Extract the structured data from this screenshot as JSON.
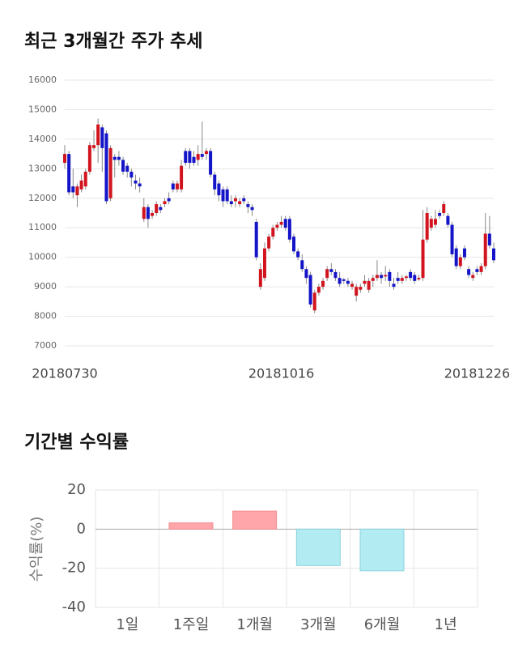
{
  "chart_data": [
    {
      "type": "candlestick",
      "title": "최근 3개월간 주가 추세",
      "categories": [
        "20180730",
        null,
        null,
        null,
        null,
        null,
        null,
        null,
        null,
        null,
        null,
        null,
        null,
        null,
        null,
        null,
        null,
        null,
        null,
        null,
        null,
        null,
        null,
        null,
        null,
        null,
        null,
        null,
        null,
        null,
        null,
        null,
        null,
        null,
        null,
        null,
        null,
        null,
        null,
        null,
        null,
        null,
        null,
        null,
        null,
        null,
        null,
        null,
        null,
        null,
        null,
        null,
        "20181016",
        null,
        null,
        null,
        null,
        null,
        null,
        null,
        null,
        null,
        null,
        null,
        null,
        null,
        null,
        null,
        null,
        null,
        null,
        null,
        null,
        null,
        null,
        null,
        null,
        null,
        null,
        null,
        null,
        null,
        null,
        null,
        null,
        null,
        null,
        null,
        null,
        null,
        null,
        null,
        null,
        null,
        null,
        null,
        null,
        null,
        null,
        "20181226",
        null,
        null,
        null,
        null
      ],
      "open": [
        13200,
        13500,
        12400,
        12100,
        12300,
        12400,
        12900,
        13700,
        13800,
        14400,
        14200,
        12000,
        13400,
        13400,
        13300,
        13100,
        12900,
        12600,
        12500,
        11300,
        11700,
        11400,
        11500,
        11700,
        11800,
        12000,
        12500,
        12300,
        12300,
        13600,
        13600,
        13400,
        13300,
        13500,
        13500,
        13600,
        12800,
        12500,
        12300,
        12300,
        11900,
        11900,
        11800,
        12000,
        11800,
        11700,
        11200,
        9000,
        9300,
        10300,
        10700,
        11000,
        11100,
        11300,
        11300,
        10700,
        10200,
        9900,
        9600,
        9400,
        8200,
        8800,
        9000,
        9300,
        9600,
        9500,
        9300,
        9250,
        9200,
        9000,
        8700,
        8900,
        9100,
        8900,
        9200,
        9300,
        9400,
        9350,
        9500,
        9100,
        9300,
        9200,
        9300,
        9500,
        9400,
        9250,
        9300,
        10600,
        11000,
        11100,
        11500,
        11500,
        11400,
        11100,
        10300,
        9700,
        10300,
        9600,
        9300,
        9600,
        9500,
        9700,
        10800,
        10300
      ],
      "high": [
        13800,
        13600,
        13000,
        12500,
        12800,
        13000,
        13900,
        14300,
        14700,
        14500,
        14300,
        13800,
        13500,
        13600,
        13400,
        13200,
        13000,
        12800,
        12700,
        12000,
        11800,
        11600,
        11900,
        11800,
        12000,
        12200,
        12600,
        12600,
        13300,
        13700,
        13700,
        13600,
        13800,
        14600,
        13700,
        13700,
        12900,
        12600,
        12400,
        12400,
        12100,
        12100,
        12000,
        12100,
        11900,
        11800,
        11300,
        9800,
        10500,
        10800,
        11100,
        11200,
        11400,
        11400,
        11400,
        10800,
        10300,
        10100,
        9700,
        9500,
        8900,
        9100,
        9300,
        9700,
        9800,
        9600,
        9500,
        9300,
        9300,
        9200,
        9100,
        9100,
        9400,
        9300,
        9400,
        9900,
        9500,
        9700,
        9600,
        9300,
        9500,
        9400,
        9400,
        9600,
        9500,
        9400,
        11600,
        11700,
        11400,
        11600,
        11600,
        11900,
        11500,
        11200,
        10400,
        10100,
        10400,
        9700,
        9500,
        9700,
        9800,
        11500,
        11400,
        10500
      ],
      "low": [
        13000,
        12100,
        12000,
        11700,
        12200,
        12300,
        12800,
        13600,
        13200,
        12900,
        11800,
        11900,
        12700,
        13100,
        12800,
        12700,
        12400,
        12300,
        12200,
        11200,
        11000,
        11300,
        11400,
        11500,
        11700,
        11800,
        12200,
        12200,
        12200,
        13100,
        13000,
        13100,
        13100,
        13300,
        13300,
        12700,
        12100,
        11900,
        11700,
        11800,
        11700,
        11700,
        11700,
        11800,
        11500,
        11400,
        9900,
        8900,
        9200,
        10200,
        10600,
        10900,
        11000,
        10900,
        10500,
        10100,
        9900,
        9500,
        9100,
        8300,
        8100,
        8700,
        8900,
        9200,
        9400,
        9200,
        9000,
        9100,
        9000,
        8900,
        8500,
        8800,
        9000,
        8800,
        9000,
        9200,
        9100,
        9200,
        9000,
        8900,
        9100,
        9100,
        9200,
        9200,
        9100,
        9200,
        9200,
        10500,
        10900,
        11000,
        11300,
        11400,
        11000,
        10000,
        9600,
        9600,
        9900,
        9300,
        9200,
        9400,
        9400,
        9600,
        10300,
        9800
      ],
      "close": [
        13500,
        12200,
        12200,
        12400,
        12600,
        12900,
        13800,
        13800,
        14500,
        13700,
        11900,
        13700,
        13300,
        13300,
        12900,
        12900,
        12700,
        12500,
        12400,
        11700,
        11300,
        11500,
        11800,
        11600,
        11900,
        11900,
        12300,
        12500,
        13100,
        13200,
        13200,
        13200,
        13500,
        13400,
        13600,
        12800,
        12300,
        12100,
        11900,
        11900,
        11800,
        12000,
        11900,
        11900,
        11700,
        11600,
        10000,
        9600,
        10300,
        10700,
        11000,
        11100,
        11200,
        11000,
        10600,
        10200,
        10000,
        9600,
        9300,
        8400,
        8800,
        9000,
        9200,
        9600,
        9500,
        9300,
        9100,
        9200,
        9100,
        9100,
        9000,
        9000,
        9200,
        9200,
        9300,
        9400,
        9300,
        9400,
        9200,
        9000,
        9200,
        9300,
        9350,
        9300,
        9200,
        9300,
        10600,
        11500,
        11300,
        11300,
        11400,
        11800,
        11100,
        10100,
        9700,
        10000,
        10000,
        9400,
        9400,
        9500,
        9700,
        10800,
        10400,
        9900
      ],
      "up_color": "#d2141e",
      "down_color": "#1414c8",
      "wick_color": "#888888",
      "ylim": [
        7000,
        16000
      ],
      "yticks": [
        7000,
        8000,
        9000,
        10000,
        11000,
        12000,
        13000,
        14000,
        15000,
        16000
      ],
      "grid": true
    },
    {
      "type": "bar",
      "title": "기간별 수익률",
      "ylabel": "수익률(%)",
      "categories": [
        "1일",
        "1주일",
        "1개월",
        "3개월",
        "6개월",
        "1년"
      ],
      "values": [
        null,
        3.2,
        9.2,
        -18.6,
        -21.3,
        null
      ],
      "positive_color": "#ffa6aa",
      "negative_color": "#b3ebf3",
      "ylim": [
        -40,
        20
      ],
      "yticks": [
        -40,
        -20,
        0,
        20
      ],
      "grid": true
    }
  ]
}
